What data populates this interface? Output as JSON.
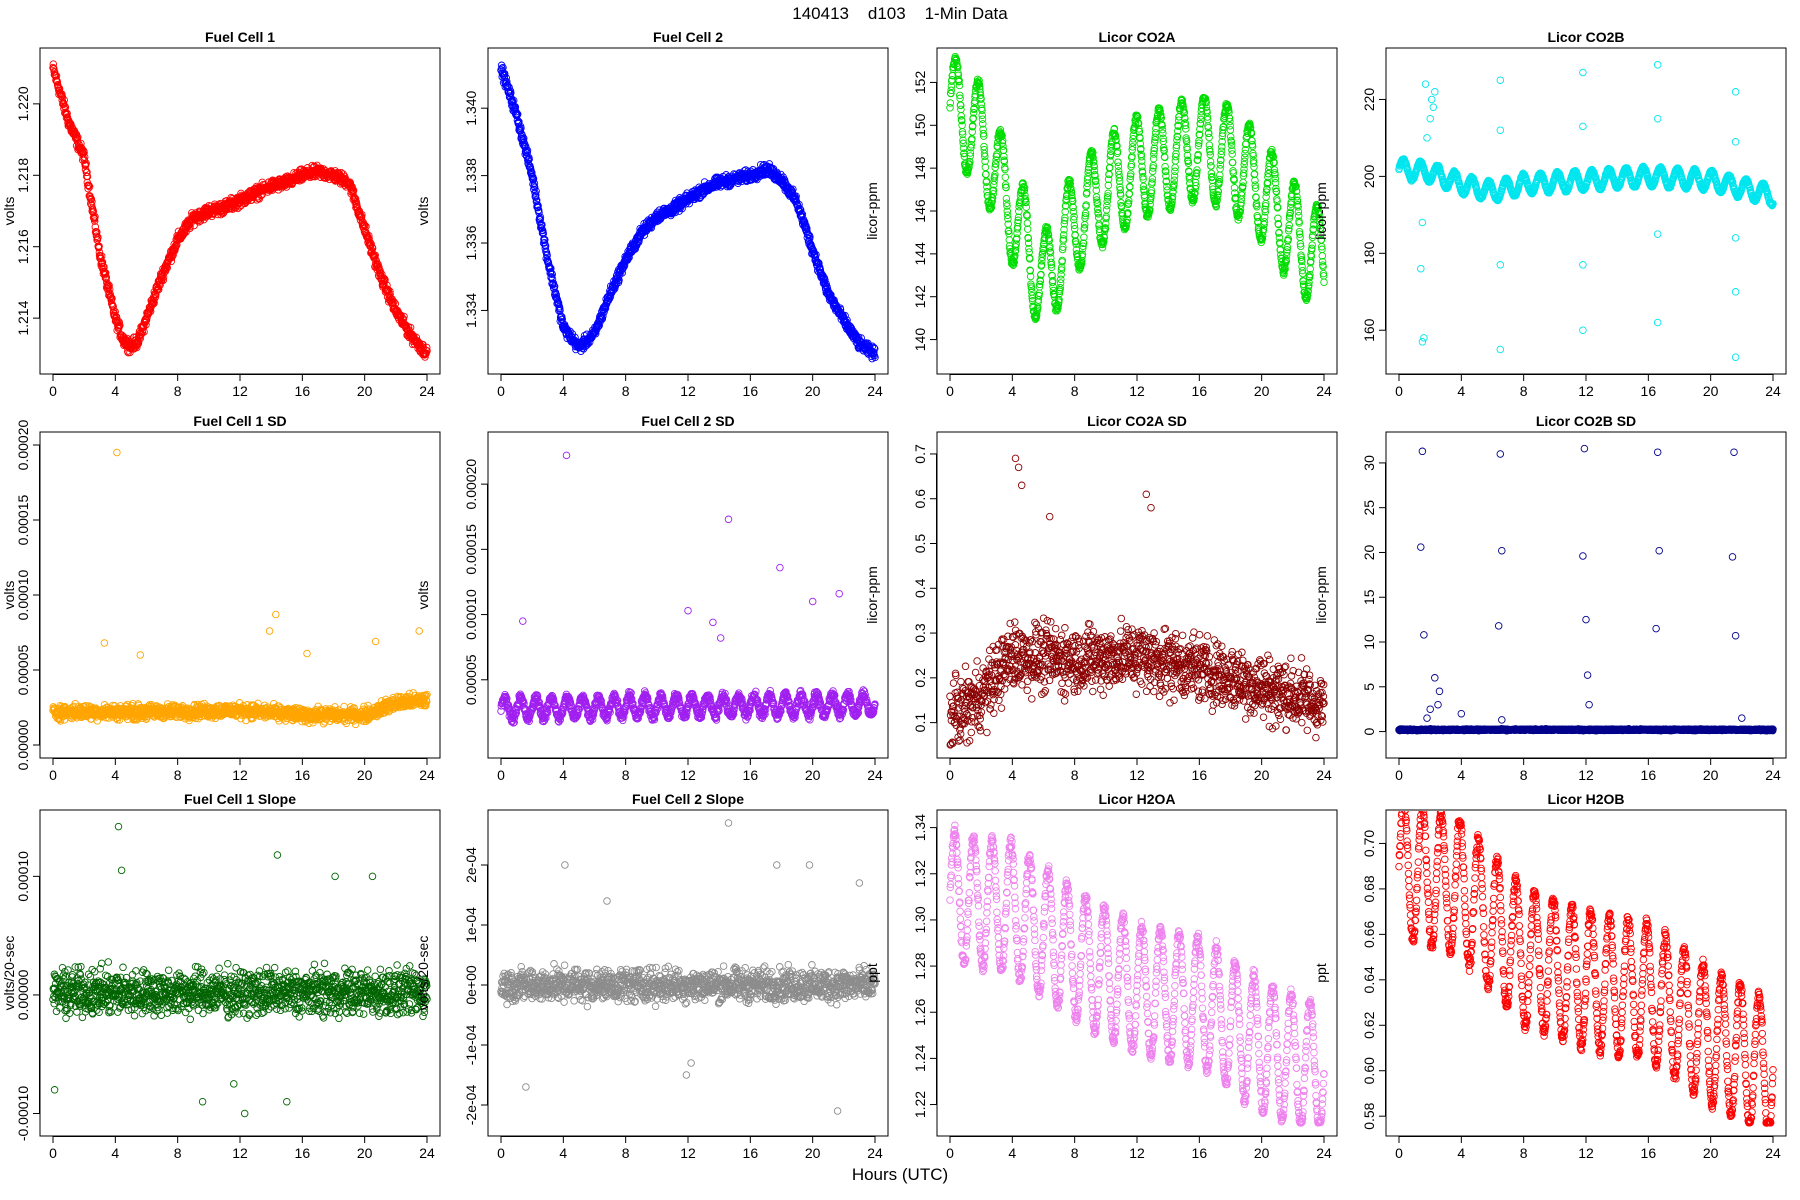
{
  "page_title": "140413    d103    1-Min Data",
  "x_axis_label": "Hours (UTC)",
  "chart_data": [
    {
      "type": "scatter",
      "title": "Fuel Cell 1",
      "ylabel": "volts",
      "color": "#ff0000",
      "xlim": [
        0,
        24
      ],
      "ylim": [
        1.2128,
        1.2212
      ],
      "xticks": [
        0,
        4,
        8,
        12,
        16,
        20,
        24
      ],
      "yticks": [
        1.214,
        1.216,
        1.218,
        1.22
      ],
      "ytick_labels": [
        "1.214",
        "1.216",
        "1.218",
        "1.220"
      ],
      "profile": {
        "x": [
          0,
          1,
          2,
          3,
          4,
          4.5,
          5,
          5.5,
          6,
          7,
          8,
          9,
          10,
          11,
          12,
          13,
          14,
          15,
          16,
          17,
          18,
          19,
          20,
          21,
          22,
          23,
          24
        ],
        "y": [
          1.221,
          1.2195,
          1.2185,
          1.2158,
          1.214,
          1.2134,
          1.2132,
          1.2134,
          1.214,
          1.2152,
          1.2162,
          1.2168,
          1.217,
          1.2171,
          1.2173,
          1.2175,
          1.2177,
          1.2178,
          1.218,
          1.2181,
          1.218,
          1.2178,
          1.2165,
          1.2152,
          1.2142,
          1.2135,
          1.213
        ]
      },
      "band": 0.00025,
      "wave_amp": 0,
      "wave_period": 1.2
    },
    {
      "type": "scatter",
      "title": "Fuel Cell 2",
      "ylabel": "volts",
      "color": "#0000ff",
      "xlim": [
        0,
        24
      ],
      "ylim": [
        1.3325,
        1.3414
      ],
      "xticks": [
        0,
        4,
        8,
        12,
        16,
        20,
        24
      ],
      "yticks": [
        1.334,
        1.336,
        1.338,
        1.34
      ],
      "ytick_labels": [
        "1.334",
        "1.336",
        "1.338",
        "1.340"
      ],
      "profile": {
        "x": [
          0,
          1,
          2,
          3,
          4,
          5,
          6,
          7,
          8,
          9,
          10,
          11,
          12,
          13,
          14,
          15,
          16,
          17,
          18,
          19,
          20,
          21,
          22,
          23,
          24
        ],
        "y": [
          1.3412,
          1.3398,
          1.338,
          1.3355,
          1.3335,
          1.3329,
          1.3333,
          1.3345,
          1.3355,
          1.3363,
          1.3368,
          1.337,
          1.3373,
          1.3376,
          1.3378,
          1.3379,
          1.338,
          1.3382,
          1.3379,
          1.3372,
          1.3358,
          1.3345,
          1.3337,
          1.333,
          1.3327
        ]
      },
      "band": 0.00025,
      "wave_amp": 0,
      "wave_period": 1.2
    },
    {
      "type": "scatter",
      "title": "Licor CO2A",
      "ylabel": "licor-ppm",
      "color": "#00dd00",
      "xlim": [
        0,
        24
      ],
      "ylim": [
        139,
        153
      ],
      "xticks": [
        0,
        4,
        8,
        12,
        16,
        20,
        24
      ],
      "yticks": [
        140,
        142,
        144,
        146,
        148,
        150,
        152
      ],
      "ytick_labels": [
        "140",
        "142",
        "144",
        "146",
        "148",
        "150",
        "152"
      ],
      "profile": {
        "x": [
          0,
          2,
          4,
          6,
          8,
          10,
          12,
          14,
          16,
          18,
          20,
          22,
          24
        ],
        "y": [
          151,
          149.5,
          146,
          142.5,
          145.5,
          147,
          148,
          148.5,
          149,
          148.5,
          147,
          145,
          143.5
        ]
      },
      "band": 0.25,
      "wave_amp": 2.4,
      "wave_period": 1.45
    },
    {
      "type": "scatter",
      "title": "Licor CO2B",
      "ylabel": "licor-ppm",
      "color": "#00e5ee",
      "xlim": [
        0,
        24
      ],
      "ylim": [
        152,
        230
      ],
      "xticks": [
        0,
        4,
        8,
        12,
        16,
        20,
        24
      ],
      "yticks": [
        160,
        180,
        200,
        220
      ],
      "ytick_labels": [
        "160",
        "180",
        "200",
        "220"
      ],
      "profile": {
        "x": [
          0,
          2,
          4,
          6,
          8,
          12,
          16,
          20,
          24
        ],
        "y": [
          202,
          201,
          198,
          196,
          198,
          199,
          200,
          199,
          195
        ]
      },
      "band": 0.4,
      "wave_amp": 2.5,
      "wave_period": 1.1,
      "outliers": [
        {
          "x": 1.5,
          "y": 157
        },
        {
          "x": 1.6,
          "y": 158
        },
        {
          "x": 1.4,
          "y": 176
        },
        {
          "x": 1.5,
          "y": 188
        },
        {
          "x": 1.8,
          "y": 210
        },
        {
          "x": 2.0,
          "y": 215
        },
        {
          "x": 2.2,
          "y": 218
        },
        {
          "x": 1.7,
          "y": 224
        },
        {
          "x": 2.3,
          "y": 222
        },
        {
          "x": 2.1,
          "y": 220
        },
        {
          "x": 6.5,
          "y": 155
        },
        {
          "x": 6.5,
          "y": 177
        },
        {
          "x": 6.5,
          "y": 212
        },
        {
          "x": 6.5,
          "y": 225
        },
        {
          "x": 11.8,
          "y": 160
        },
        {
          "x": 11.8,
          "y": 177
        },
        {
          "x": 11.8,
          "y": 213
        },
        {
          "x": 11.8,
          "y": 227
        },
        {
          "x": 16.6,
          "y": 162
        },
        {
          "x": 16.6,
          "y": 185
        },
        {
          "x": 16.6,
          "y": 215
        },
        {
          "x": 16.6,
          "y": 229
        },
        {
          "x": 21.6,
          "y": 153
        },
        {
          "x": 21.6,
          "y": 170
        },
        {
          "x": 21.6,
          "y": 184
        },
        {
          "x": 21.6,
          "y": 209
        },
        {
          "x": 21.6,
          "y": 222
        }
      ]
    },
    {
      "type": "scatter",
      "title": "Fuel Cell 1 SD",
      "ylabel": "volts",
      "color": "#ffa500",
      "xlim": [
        0,
        24
      ],
      "ylim": [
        0,
        0.0002
      ],
      "xticks": [
        0,
        4,
        8,
        12,
        16,
        20,
        24
      ],
      "yticks": [
        0,
        5e-05,
        0.0001,
        0.00015,
        0.0002
      ],
      "ytick_labels": [
        "0.00000",
        "0.00005",
        "0.00010",
        "0.00015",
        "0.00020"
      ],
      "profile": {
        "x": [
          0,
          6,
          12,
          16,
          20,
          22,
          24
        ],
        "y": [
          2.2e-05,
          2.2e-05,
          2.3e-05,
          2e-05,
          2e-05,
          2.8e-05,
          3e-05
        ]
      },
      "band": 7e-06,
      "wave_amp": 0,
      "wave_period": 1,
      "outliers": [
        {
          "x": 4.1,
          "y": 0.000195
        },
        {
          "x": 14.3,
          "y": 8.7e-05
        },
        {
          "x": 13.9,
          "y": 7.6e-05
        },
        {
          "x": 3.3,
          "y": 6.8e-05
        },
        {
          "x": 23.5,
          "y": 7.6e-05
        },
        {
          "x": 20.7,
          "y": 6.9e-05
        },
        {
          "x": 16.3,
          "y": 6.1e-05
        },
        {
          "x": 5.6,
          "y": 6e-05
        }
      ]
    },
    {
      "type": "scatter",
      "title": "Fuel Cell 2 SD",
      "ylabel": "volts",
      "color": "#a020f0",
      "xlim": [
        0,
        24
      ],
      "ylim": [
        0,
        0.00023
      ],
      "xticks": [
        0,
        4,
        8,
        12,
        16,
        20,
        24
      ],
      "yticks": [
        5e-05,
        0.0001,
        0.00015,
        0.0002
      ],
      "ytick_labels": [
        "0.00005",
        "0.00010",
        "0.00015",
        "0.00020"
      ],
      "profile": {
        "x": [
          0,
          12,
          24
        ],
        "y": [
          2.8e-05,
          3e-05,
          3.1e-05
        ]
      },
      "band": 5e-06,
      "wave_amp": 8e-06,
      "wave_period": 1.0,
      "outliers": [
        {
          "x": 4.2,
          "y": 0.000222
        },
        {
          "x": 14.6,
          "y": 0.000173
        },
        {
          "x": 17.9,
          "y": 0.000136
        },
        {
          "x": 21.7,
          "y": 0.000116
        },
        {
          "x": 12.0,
          "y": 0.000103
        },
        {
          "x": 20.0,
          "y": 0.00011
        },
        {
          "x": 1.4,
          "y": 9.5e-05
        },
        {
          "x": 13.6,
          "y": 9.4e-05
        },
        {
          "x": 14.1,
          "y": 8.2e-05
        }
      ]
    },
    {
      "type": "scatter",
      "title": "Licor CO2A SD",
      "ylabel": "licor-ppm",
      "color": "#8b0000",
      "xlim": [
        0,
        24
      ],
      "ylim": [
        0.05,
        0.72
      ],
      "xticks": [
        0,
        4,
        8,
        12,
        16,
        20,
        24
      ],
      "yticks": [
        0.1,
        0.2,
        0.3,
        0.4,
        0.5,
        0.6,
        0.7
      ],
      "ytick_labels": [
        "0.1",
        "0.2",
        "0.3",
        "0.4",
        "0.5",
        "0.6",
        "0.7"
      ],
      "profile": {
        "x": [
          0,
          2,
          4,
          8,
          12,
          16,
          20,
          24
        ],
        "y": [
          0.11,
          0.16,
          0.25,
          0.24,
          0.25,
          0.22,
          0.18,
          0.14
        ]
      },
      "band": 0.11,
      "wave_amp": 0,
      "wave_period": 1,
      "outliers": [
        {
          "x": 4.2,
          "y": 0.69
        },
        {
          "x": 4.4,
          "y": 0.67
        },
        {
          "x": 12.6,
          "y": 0.61
        },
        {
          "x": 4.6,
          "y": 0.63
        },
        {
          "x": 12.9,
          "y": 0.58
        },
        {
          "x": 6.4,
          "y": 0.56
        }
      ]
    },
    {
      "type": "scatter",
      "title": "Licor CO2B SD",
      "ylabel": "licor-ppm",
      "color": "#00008b",
      "xlim": [
        0,
        24
      ],
      "ylim": [
        -1.5,
        32
      ],
      "xticks": [
        0,
        4,
        8,
        12,
        16,
        20,
        24
      ],
      "yticks": [
        0,
        5,
        10,
        15,
        20,
        25,
        30
      ],
      "ytick_labels": [
        "0",
        "5",
        "10",
        "15",
        "20",
        "25",
        "30"
      ],
      "profile": {
        "x": [
          0,
          24
        ],
        "y": [
          0.2,
          0.2
        ]
      },
      "band": 0.12,
      "wave_amp": 0,
      "wave_period": 1,
      "outliers": [
        {
          "x": 1.5,
          "y": 31.3
        },
        {
          "x": 1.4,
          "y": 20.6
        },
        {
          "x": 1.6,
          "y": 10.8
        },
        {
          "x": 2.0,
          "y": 2.5
        },
        {
          "x": 2.3,
          "y": 6.0
        },
        {
          "x": 2.6,
          "y": 4.5
        },
        {
          "x": 2.5,
          "y": 3.0
        },
        {
          "x": 1.8,
          "y": 1.5
        },
        {
          "x": 6.5,
          "y": 31
        },
        {
          "x": 6.6,
          "y": 20.2
        },
        {
          "x": 6.4,
          "y": 11.8
        },
        {
          "x": 6.6,
          "y": 1.3
        },
        {
          "x": 11.9,
          "y": 31.6
        },
        {
          "x": 11.8,
          "y": 19.6
        },
        {
          "x": 12.0,
          "y": 12.5
        },
        {
          "x": 12.1,
          "y": 6.3
        },
        {
          "x": 12.2,
          "y": 3.0
        },
        {
          "x": 16.6,
          "y": 31.2
        },
        {
          "x": 16.7,
          "y": 20.2
        },
        {
          "x": 16.5,
          "y": 11.5
        },
        {
          "x": 21.5,
          "y": 31.2
        },
        {
          "x": 21.4,
          "y": 19.5
        },
        {
          "x": 21.6,
          "y": 10.7
        },
        {
          "x": 22.0,
          "y": 1.5
        },
        {
          "x": 4.0,
          "y": 2.0
        }
      ]
    },
    {
      "type": "scatter",
      "title": "Fuel Cell 1 Slope",
      "ylabel": "volts/20-sec",
      "color": "#006400",
      "xlim": [
        0,
        24
      ],
      "ylim": [
        -0.000108,
        0.000145
      ],
      "xticks": [
        0,
        4,
        8,
        12,
        16,
        20,
        24
      ],
      "yticks": [
        -0.0001,
        0,
        0.0001
      ],
      "ytick_labels": [
        "-0.00010",
        "0.00000",
        "0.00010"
      ],
      "profile": {
        "x": [
          0,
          24
        ],
        "y": [
          2e-06,
          2e-06
        ]
      },
      "band": 2.8e-05,
      "wave_amp": 0,
      "wave_period": 1,
      "outliers": [
        {
          "x": 4.2,
          "y": 0.000142
        },
        {
          "x": 4.4,
          "y": 0.000105
        },
        {
          "x": 14.4,
          "y": 0.000118
        },
        {
          "x": 18.1,
          "y": 0.0001
        },
        {
          "x": 20.5,
          "y": 0.0001
        },
        {
          "x": 12.3,
          "y": -0.0001
        },
        {
          "x": 9.6,
          "y": -9e-05
        },
        {
          "x": 15.0,
          "y": -9e-05
        },
        {
          "x": 0.1,
          "y": -8e-05
        },
        {
          "x": 11.6,
          "y": -7.5e-05
        }
      ]
    },
    {
      "type": "scatter",
      "title": "Fuel Cell 2 Slope",
      "ylabel": "volts/20-sec",
      "color": "#8c8c8c",
      "xlim": [
        0,
        24
      ],
      "ylim": [
        -0.00023,
        0.00027
      ],
      "xticks": [
        0,
        4,
        8,
        12,
        16,
        20,
        24
      ],
      "yticks": [
        -0.0002,
        -0.0001,
        0,
        0.0001,
        0.0002
      ],
      "ytick_labels": [
        "-2e-04",
        "-1e-04",
        "0e+00",
        "1e-04",
        "2e-04"
      ],
      "profile": {
        "x": [
          0,
          24
        ],
        "y": [
          0.0,
          0.0
        ]
      },
      "band": 4e-05,
      "wave_amp": 0,
      "wave_period": 1,
      "outliers": [
        {
          "x": 14.6,
          "y": 0.00027
        },
        {
          "x": 4.1,
          "y": 0.0002
        },
        {
          "x": 17.7,
          "y": 0.0002
        },
        {
          "x": 19.8,
          "y": 0.0002
        },
        {
          "x": 21.6,
          "y": -0.00021
        },
        {
          "x": 1.6,
          "y": -0.00017
        },
        {
          "x": 11.9,
          "y": -0.00015
        },
        {
          "x": 12.2,
          "y": -0.00013
        },
        {
          "x": 23.0,
          "y": 0.00017
        },
        {
          "x": 6.8,
          "y": 0.00014
        }
      ]
    },
    {
      "type": "scatter",
      "title": "Licor H2OA",
      "ylabel": "ppt",
      "color": "#ee82ee",
      "xlim": [
        0,
        24
      ],
      "ylim": [
        1.212,
        1.342
      ],
      "xticks": [
        0,
        4,
        8,
        12,
        16,
        20,
        24
      ],
      "yticks": [
        1.22,
        1.24,
        1.26,
        1.28,
        1.3,
        1.32,
        1.34
      ],
      "ytick_labels": [
        "1.22",
        "1.24",
        "1.26",
        "1.28",
        "1.30",
        "1.32",
        "1.34"
      ],
      "profile": {
        "x": [
          0,
          4,
          8,
          12,
          16,
          20,
          24
        ],
        "y": [
          1.31,
          1.305,
          1.285,
          1.27,
          1.265,
          1.245,
          1.235
        ]
      },
      "band": 0.004,
      "wave_amp": 0.028,
      "wave_period": 1.2
    },
    {
      "type": "scatter",
      "title": "Licor H2OB",
      "ylabel": "ppt",
      "color": "#ff0000",
      "xlim": [
        0,
        24
      ],
      "ylim": [
        0.577,
        0.709
      ],
      "xticks": [
        0,
        4,
        8,
        12,
        16,
        20,
        24
      ],
      "yticks": [
        0.58,
        0.6,
        0.62,
        0.64,
        0.66,
        0.68,
        0.7
      ],
      "ytick_labels": [
        "0.58",
        "0.60",
        "0.62",
        "0.64",
        "0.66",
        "0.68",
        "0.70"
      ],
      "profile": {
        "x": [
          0,
          4,
          8,
          12,
          16,
          20,
          24
        ],
        "y": [
          0.69,
          0.68,
          0.65,
          0.64,
          0.635,
          0.615,
          0.6
        ]
      },
      "band": 0.004,
      "wave_amp": 0.03,
      "wave_period": 1.2
    }
  ]
}
